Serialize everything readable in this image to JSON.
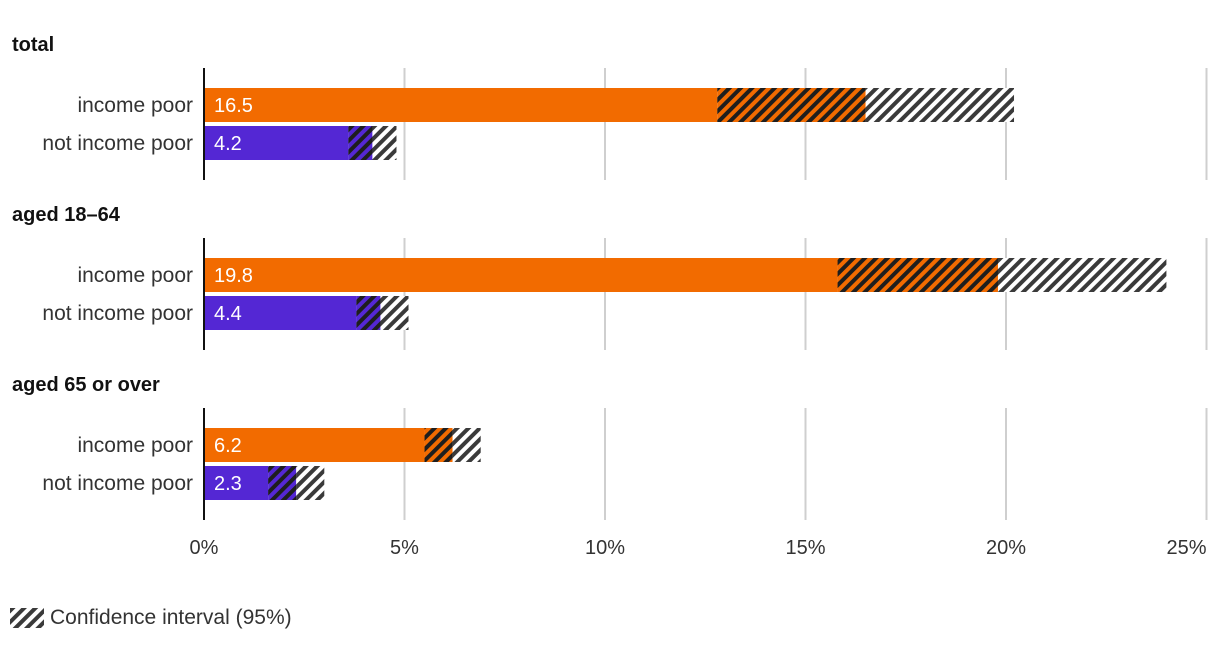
{
  "chart_data": {
    "type": "bar",
    "orientation": "horizontal",
    "xlim": [
      0,
      25
    ],
    "x_ticks": [
      "0%",
      "5%",
      "10%",
      "15%",
      "20%",
      "25%"
    ],
    "x_tick_values": [
      0,
      5,
      10,
      15,
      20,
      25
    ],
    "grid": true,
    "legend_placement": "bottom-left",
    "colors": {
      "income poor": "#f26b00",
      "not income poor": "#5427d4",
      "ci_hatch": "#3a3a3a"
    },
    "groups": [
      {
        "title": "total",
        "bars": [
          {
            "label": "income poor",
            "value": 16.5,
            "value_label": "16.5",
            "ci": [
              12.8,
              20.2
            ]
          },
          {
            "label": "not income poor",
            "value": 4.2,
            "value_label": "4.2",
            "ci": [
              3.6,
              4.8
            ]
          }
        ]
      },
      {
        "title": "aged 18–64",
        "bars": [
          {
            "label": "income poor",
            "value": 19.8,
            "value_label": "19.8",
            "ci": [
              15.8,
              24.0
            ]
          },
          {
            "label": "not income poor",
            "value": 4.4,
            "value_label": "4.4",
            "ci": [
              3.8,
              5.1
            ]
          }
        ]
      },
      {
        "title": "aged 65 or over",
        "bars": [
          {
            "label": "income poor",
            "value": 6.2,
            "value_label": "6.2",
            "ci": [
              5.5,
              6.9
            ]
          },
          {
            "label": "not income poor",
            "value": 2.3,
            "value_label": "2.3",
            "ci": [
              1.6,
              3.0
            ]
          }
        ]
      }
    ],
    "legend": {
      "label": "Confidence interval (95%)"
    }
  }
}
